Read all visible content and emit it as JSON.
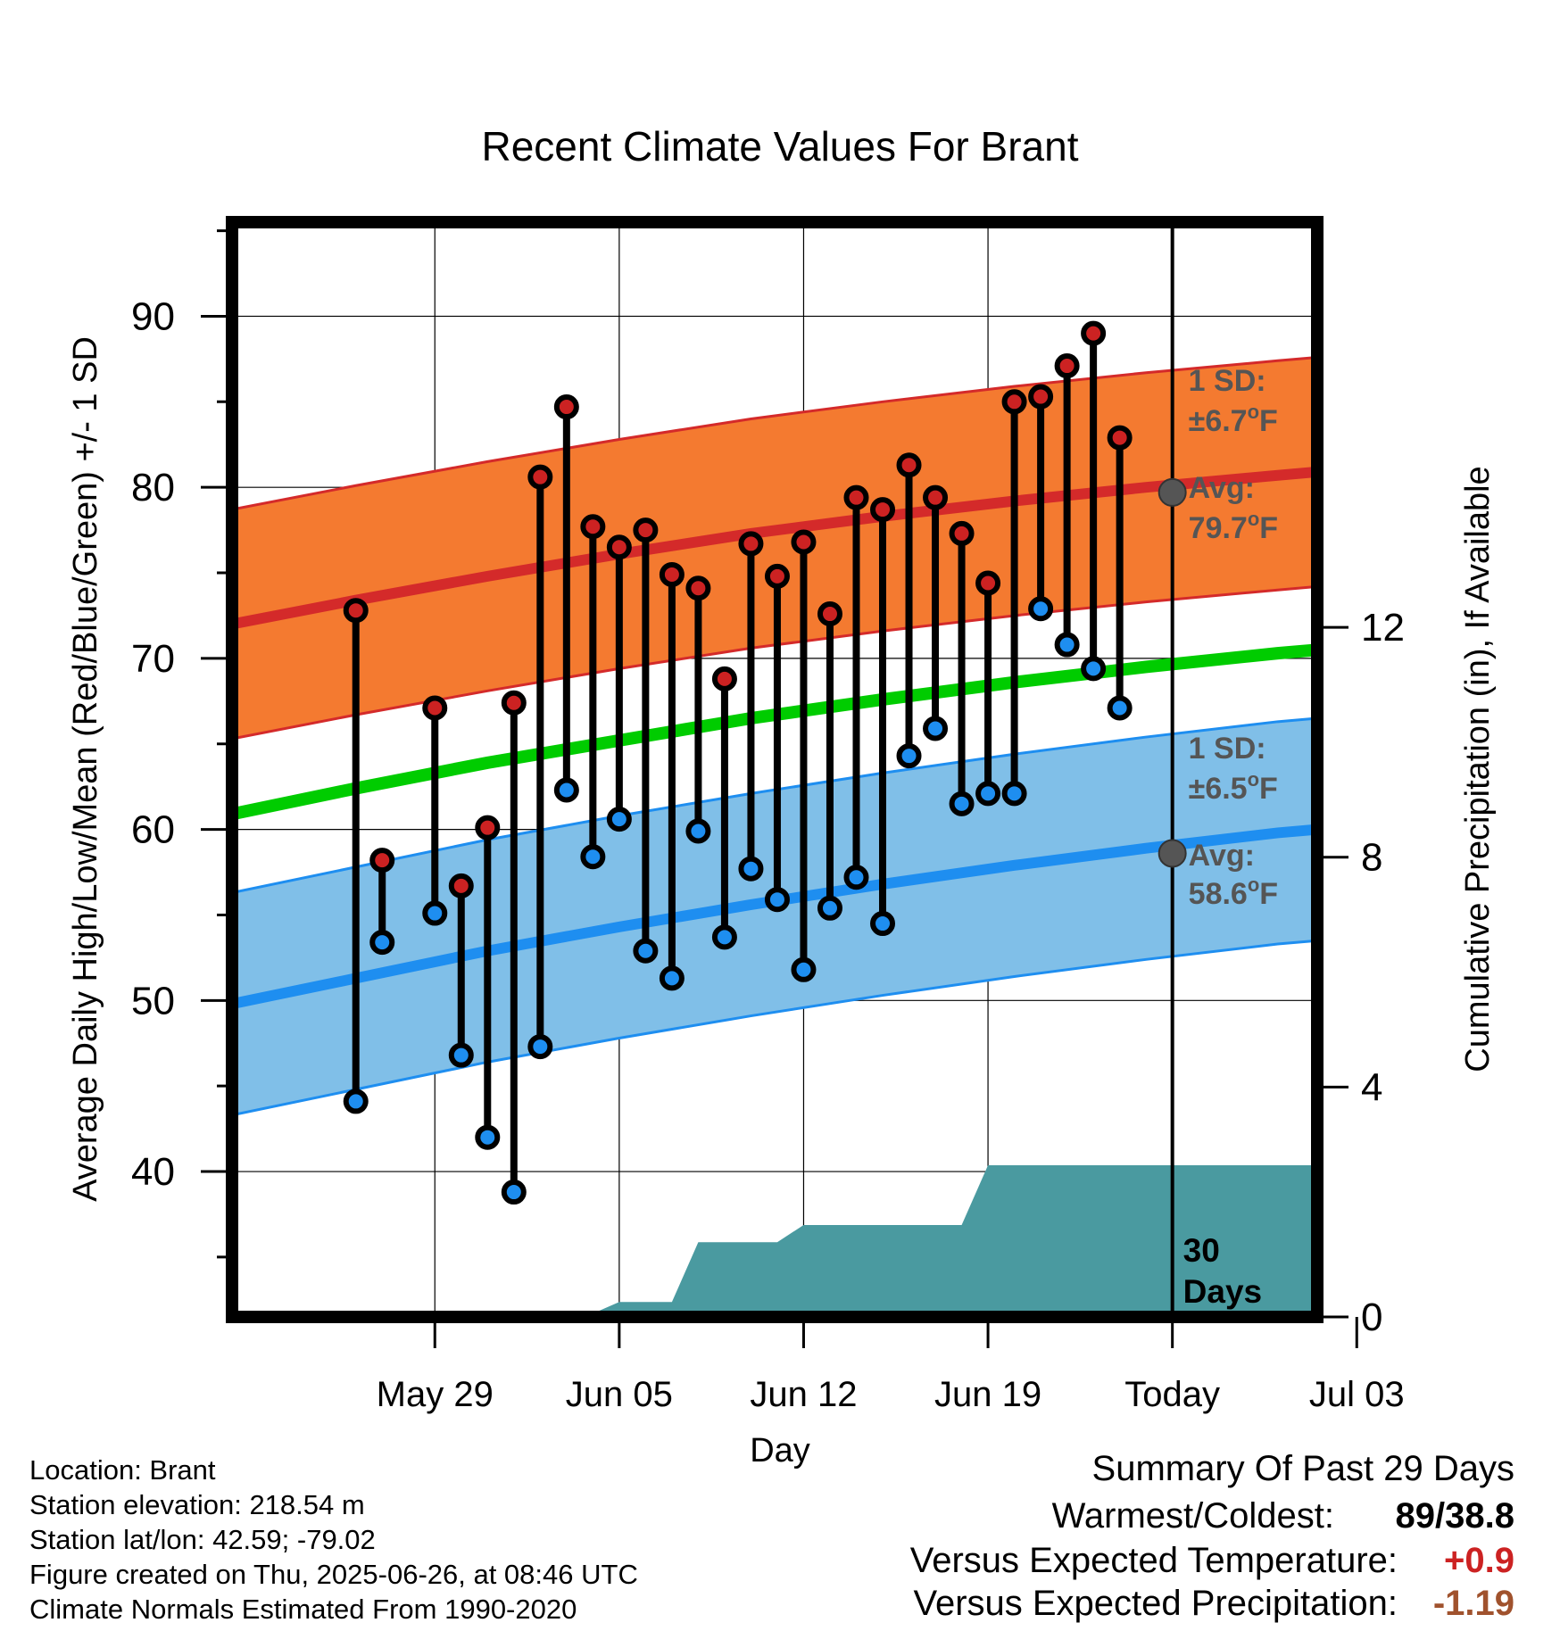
{
  "chart_data": {
    "type": "line",
    "title": "Recent Climate Values For Brant",
    "xlabel": "Day",
    "ylabel": "Average Daily High/Low/Mean (Red/Blue/Green) +/- 1 SD",
    "ylabel_right": "Cumulative Precipitation (in), If Available",
    "xlim": [
      -4.7,
      36.5
    ],
    "ylim": [
      31.5,
      95.5
    ],
    "ylim_right": [
      0,
      19.05
    ],
    "x_ticks": [
      {
        "x": 3,
        "label": "May 29"
      },
      {
        "x": 10,
        "label": "Jun 05"
      },
      {
        "x": 17,
        "label": "Jun 12"
      },
      {
        "x": 24,
        "label": "Jun 19"
      },
      {
        "x": 31,
        "label": "Today"
      },
      {
        "x": 38,
        "label": "Jul 03"
      }
    ],
    "y_ticks": [
      {
        "v": 40,
        "label": "40"
      },
      {
        "v": 50,
        "label": "50"
      },
      {
        "v": 60,
        "label": "60"
      },
      {
        "v": 70,
        "label": "70"
      },
      {
        "v": 80,
        "label": "80"
      },
      {
        "v": 90,
        "label": "90"
      }
    ],
    "y_minor_ticks": [
      35,
      45,
      55,
      65,
      75,
      85,
      95
    ],
    "y_right_ticks": [
      {
        "v": 0,
        "label": "0"
      },
      {
        "v": 4,
        "label": "4"
      },
      {
        "v": 8,
        "label": "8"
      },
      {
        "v": 12,
        "label": "12"
      }
    ],
    "grid": true,
    "today_x": 31,
    "normals": {
      "x": [
        -4.7,
        0,
        5,
        10,
        15,
        20,
        25,
        30,
        35,
        36.5
      ],
      "high_avg": [
        72.0,
        73.4,
        74.8,
        76.1,
        77.3,
        78.3,
        79.2,
        80.0,
        80.7,
        80.9
      ],
      "high_sd": 6.7,
      "low_avg": [
        49.8,
        51.3,
        52.9,
        54.3,
        55.6,
        56.8,
        57.9,
        58.9,
        59.8,
        60.0
      ],
      "low_sd": 6.5,
      "mean_avg": [
        60.9,
        62.4,
        63.9,
        65.2,
        66.5,
        67.6,
        68.6,
        69.5,
        70.3,
        70.5
      ]
    },
    "daily": [
      {
        "day": 0,
        "high": 72.8,
        "low": 44.1
      },
      {
        "day": 1,
        "high": 58.2,
        "low": 53.4
      },
      {
        "day": 3,
        "high": 67.1,
        "low": 55.1
      },
      {
        "day": 4,
        "high": 56.7,
        "low": 46.8
      },
      {
        "day": 5,
        "high": 60.1,
        "low": 42.0
      },
      {
        "day": 6,
        "high": 67.4,
        "low": 38.8
      },
      {
        "day": 7,
        "high": 80.6,
        "low": 47.3
      },
      {
        "day": 8,
        "high": 84.7,
        "low": 62.3
      },
      {
        "day": 9,
        "high": 77.7,
        "low": 58.4
      },
      {
        "day": 10,
        "high": 76.5,
        "low": 60.6
      },
      {
        "day": 11,
        "high": 77.5,
        "low": 52.9
      },
      {
        "day": 12,
        "high": 74.9,
        "low": 51.3
      },
      {
        "day": 13,
        "high": 74.1,
        "low": 59.9
      },
      {
        "day": 14,
        "high": 68.8,
        "low": 53.7
      },
      {
        "day": 15,
        "high": 76.7,
        "low": 57.7
      },
      {
        "day": 16,
        "high": 74.8,
        "low": 55.9
      },
      {
        "day": 17,
        "high": 76.8,
        "low": 51.8
      },
      {
        "day": 18,
        "high": 72.6,
        "low": 55.4
      },
      {
        "day": 19,
        "high": 79.4,
        "low": 57.2
      },
      {
        "day": 20,
        "high": 78.7,
        "low": 54.5
      },
      {
        "day": 21,
        "high": 81.3,
        "low": 64.3
      },
      {
        "day": 22,
        "high": 79.4,
        "low": 65.9
      },
      {
        "day": 23,
        "high": 77.3,
        "low": 61.5
      },
      {
        "day": 24,
        "high": 74.4,
        "low": 62.1
      },
      {
        "day": 25,
        "high": 85.0,
        "low": 62.1
      },
      {
        "day": 26,
        "high": 85.3,
        "low": 72.9
      },
      {
        "day": 27,
        "high": 87.1,
        "low": 70.8
      },
      {
        "day": 28,
        "high": 89.0,
        "low": 69.4
      },
      {
        "day": 29,
        "high": 82.9,
        "low": 67.1
      }
    ],
    "precip_cumulative": {
      "x": [
        -4.7,
        3,
        3.5,
        6.5,
        7,
        9,
        10,
        12,
        13,
        16,
        17,
        21,
        22,
        23,
        24,
        36.5
      ],
      "value": [
        0,
        0,
        0.06,
        0.06,
        0.06,
        0.06,
        0.26,
        0.26,
        1.3,
        1.3,
        1.6,
        1.6,
        1.6,
        1.6,
        2.64,
        2.64
      ]
    },
    "annotations": {
      "high_sd": {
        "line1": "1 SD:",
        "line2": "±6.7",
        "unit": "F"
      },
      "high_avg": {
        "line1": "Avg:",
        "line2": "79.7",
        "unit": "F"
      },
      "low_sd": {
        "line1": "1 SD:",
        "line2": "±6.5",
        "unit": "F"
      },
      "low_avg": {
        "line1": "Avg:",
        "line2": "58.6",
        "unit": "F"
      },
      "today_high_value": 79.7,
      "today_low_value": 58.6,
      "degree_symbol": "o",
      "window": {
        "line1": "30",
        "line2": "Days"
      }
    },
    "colors": {
      "high_band": "#f47a30",
      "high_line": "#d42a2a",
      "low_band": "#80bfe8",
      "low_line": "#1e8ef0",
      "mean_line": "#00cc00",
      "precip": "#4a9aa0",
      "high_point": "#cc2222",
      "low_point": "#1e8ef0",
      "annotation_text": "#555555"
    }
  },
  "footer": {
    "location": "Location: Brant",
    "elevation": "Station elevation: 218.54 m",
    "latlon": "Station lat/lon: 42.59; -79.02",
    "created": "Figure created on Thu, 2025-06-26, at 08:46 UTC",
    "normals": "Climate Normals Estimated From 1990-2020"
  },
  "summary": {
    "title": "Summary Of Past 29 Days",
    "warmest_label": "Warmest/Coldest:",
    "warmest_value": "89/38.8",
    "temp_label": "Versus Expected Temperature:",
    "temp_value": "+0.9",
    "temp_color": "#cc2222",
    "precip_label": "Versus Expected Precipitation:",
    "precip_value": "-1.19",
    "precip_color": "#a0522d"
  }
}
